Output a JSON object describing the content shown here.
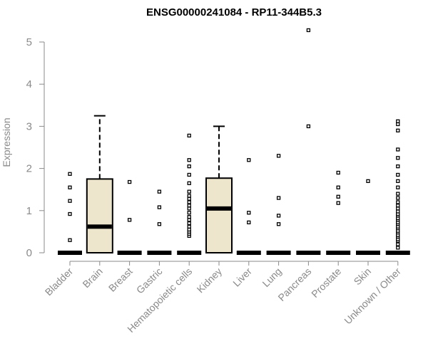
{
  "chart_data": {
    "type": "box",
    "title": "ENSG00000241084 - RP11-344B5.3",
    "ylabel": "Expression",
    "xlabel": "",
    "ylim": [
      0,
      5.3
    ],
    "yticks": [
      "0",
      "1",
      "2",
      "3",
      "4",
      "5"
    ],
    "grid": false,
    "legend": "none",
    "colors": {
      "box_fill": "#ede6cc",
      "line": "#000000",
      "axis": "#8a8a8a"
    },
    "categories": [
      "Bladder",
      "Brain",
      "Breast",
      "Gastric",
      "Hematopoietic cells",
      "Kidney",
      "Liver",
      "Lung",
      "Pancreas",
      "Prostate",
      "Skin",
      "Unknown / Other"
    ],
    "boxes": [
      {
        "q1": 0,
        "median": 0,
        "q3": 0,
        "whisker_low": 0,
        "whisker_high": 0,
        "outliers": [
          0.3,
          0.92,
          1.23,
          1.55,
          1.87
        ]
      },
      {
        "q1": 0,
        "median": 0.62,
        "q3": 1.75,
        "whisker_low": 0,
        "whisker_high": 3.25,
        "outliers": []
      },
      {
        "q1": 0,
        "median": 0,
        "q3": 0,
        "whisker_low": 0,
        "whisker_high": 0,
        "outliers": [
          0.78,
          1.68
        ]
      },
      {
        "q1": 0,
        "median": 0,
        "q3": 0,
        "whisker_low": 0,
        "whisker_high": 0,
        "outliers": [
          0.68,
          1.08,
          1.45
        ]
      },
      {
        "q1": 0,
        "median": 0,
        "q3": 0,
        "whisker_low": 0,
        "whisker_high": 0,
        "outliers": [
          0.4,
          0.45,
          0.5,
          0.55,
          0.62,
          0.7,
          0.78,
          0.85,
          0.95,
          1.05,
          1.12,
          1.2,
          1.28,
          1.35,
          1.45,
          1.65,
          1.85,
          2.05,
          2.2,
          2.78
        ]
      },
      {
        "q1": 0,
        "median": 1.05,
        "q3": 1.77,
        "whisker_low": 0,
        "whisker_high": 3.0,
        "outliers": []
      },
      {
        "q1": 0,
        "median": 0,
        "q3": 0,
        "whisker_low": 0,
        "whisker_high": 0,
        "outliers": [
          0.72,
          0.95,
          2.2
        ]
      },
      {
        "q1": 0,
        "median": 0,
        "q3": 0,
        "whisker_low": 0,
        "whisker_high": 0,
        "outliers": [
          0.68,
          0.88,
          1.3,
          2.3
        ]
      },
      {
        "q1": 0,
        "median": 0,
        "q3": 0,
        "whisker_low": 0,
        "whisker_high": 0,
        "outliers": [
          3.0,
          5.28
        ]
      },
      {
        "q1": 0,
        "median": 0,
        "q3": 0,
        "whisker_low": 0,
        "whisker_high": 0,
        "outliers": [
          1.18,
          1.33,
          1.55,
          1.9
        ]
      },
      {
        "q1": 0,
        "median": 0,
        "q3": 0,
        "whisker_low": 0,
        "whisker_high": 0,
        "outliers": [
          1.7
        ]
      },
      {
        "q1": 0,
        "median": 0,
        "q3": 0,
        "whisker_low": 0,
        "whisker_high": 0,
        "outliers": [
          0.12,
          0.2,
          0.28,
          0.32,
          0.38,
          0.42,
          0.48,
          0.52,
          0.58,
          0.62,
          0.68,
          0.72,
          0.78,
          0.82,
          0.88,
          0.92,
          0.98,
          1.05,
          1.12,
          1.2,
          1.3,
          1.4,
          1.55,
          1.7,
          1.85,
          2.05,
          2.25,
          2.45,
          2.9,
          3.05,
          3.12
        ]
      }
    ]
  }
}
